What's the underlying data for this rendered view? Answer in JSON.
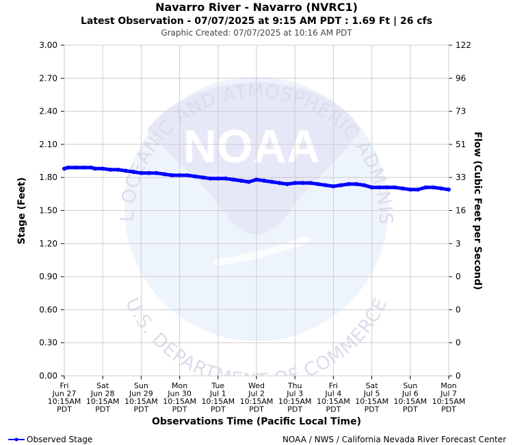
{
  "header": {
    "title": "Navarro River - Navarro (NVRC1)",
    "subtitle": "Latest Observation - 07/07/2025 at 9:15 AM PDT : 1.69 Ft | 26 cfs",
    "created": "Graphic Created: 07/07/2025 at 10:16 AM PDT"
  },
  "watermark": {
    "logo_text": "NOAA",
    "top_arc": "NATIONAL OCEANIC AND ATMOSPHERIC ADMINISTRATION",
    "bottom_arc": "U.S. DEPARTMENT OF COMMERCE"
  },
  "footer": {
    "legend_label": "Observed Stage",
    "credit": "NOAA / NWS / California Nevada River Forecast Center"
  },
  "colors": {
    "series": "#0000ff",
    "grid": "#cccccc",
    "watermark_disc": "#eef4fc",
    "watermark_bird": "#e6e8f8"
  },
  "chart_data": {
    "type": "line",
    "xlabel": "Observations Time (Pacific Local Time)",
    "ylabel": "Stage (Feet)",
    "y2label": "Flow (Cubic Feet per Second)",
    "ylim": [
      0,
      3
    ],
    "xlim": [
      0,
      10
    ],
    "grid": true,
    "legend_position": "bottom-left",
    "yticks": [
      "0.00",
      "0.30",
      "0.60",
      "0.90",
      "1.20",
      "1.50",
      "1.80",
      "2.10",
      "2.40",
      "2.70",
      "3.00"
    ],
    "y2ticks": [
      "0",
      "0",
      "0",
      "0",
      "3",
      "16",
      "33",
      "51",
      "73",
      "96",
      "122"
    ],
    "xticks": [
      [
        "Fri",
        "Jun 27",
        "10:15AM",
        "PDT"
      ],
      [
        "Sat",
        "Jun 28",
        "10:15AM",
        "PDT"
      ],
      [
        "Sun",
        "Jun 29",
        "10:15AM",
        "PDT"
      ],
      [
        "Mon",
        "Jun 30",
        "10:15AM",
        "PDT"
      ],
      [
        "Tue",
        "Jul 1",
        "10:15AM",
        "PDT"
      ],
      [
        "Wed",
        "Jul 2",
        "10:15AM",
        "PDT"
      ],
      [
        "Thu",
        "Jul 3",
        "10:15AM",
        "PDT"
      ],
      [
        "Fri",
        "Jul 4",
        "10:15AM",
        "PDT"
      ],
      [
        "Sat",
        "Jul 5",
        "10:15AM",
        "PDT"
      ],
      [
        "Sun",
        "Jul 6",
        "10:15AM",
        "PDT"
      ],
      [
        "Mon",
        "Jul 7",
        "10:15AM",
        "PDT"
      ]
    ],
    "series": [
      {
        "name": "Observed Stage",
        "x": [
          0.0,
          0.1,
          0.3,
          0.5,
          0.7,
          0.8,
          1.0,
          1.2,
          1.4,
          1.6,
          1.8,
          2.0,
          2.2,
          2.4,
          2.6,
          2.8,
          3.0,
          3.2,
          3.4,
          3.6,
          3.8,
          4.0,
          4.2,
          4.4,
          4.6,
          4.8,
          5.0,
          5.2,
          5.4,
          5.6,
          5.8,
          6.0,
          6.2,
          6.4,
          6.6,
          6.8,
          7.0,
          7.2,
          7.4,
          7.6,
          7.8,
          8.0,
          8.2,
          8.4,
          8.6,
          8.8,
          9.0,
          9.2,
          9.4,
          9.6,
          9.8,
          10.0
        ],
        "values": [
          1.88,
          1.89,
          1.89,
          1.89,
          1.89,
          1.88,
          1.88,
          1.87,
          1.87,
          1.86,
          1.85,
          1.84,
          1.84,
          1.84,
          1.83,
          1.82,
          1.82,
          1.82,
          1.81,
          1.8,
          1.79,
          1.79,
          1.79,
          1.78,
          1.77,
          1.76,
          1.78,
          1.77,
          1.76,
          1.75,
          1.74,
          1.75,
          1.75,
          1.75,
          1.74,
          1.73,
          1.72,
          1.73,
          1.74,
          1.74,
          1.73,
          1.71,
          1.71,
          1.71,
          1.71,
          1.7,
          1.69,
          1.69,
          1.71,
          1.71,
          1.7,
          1.69
        ]
      }
    ]
  }
}
